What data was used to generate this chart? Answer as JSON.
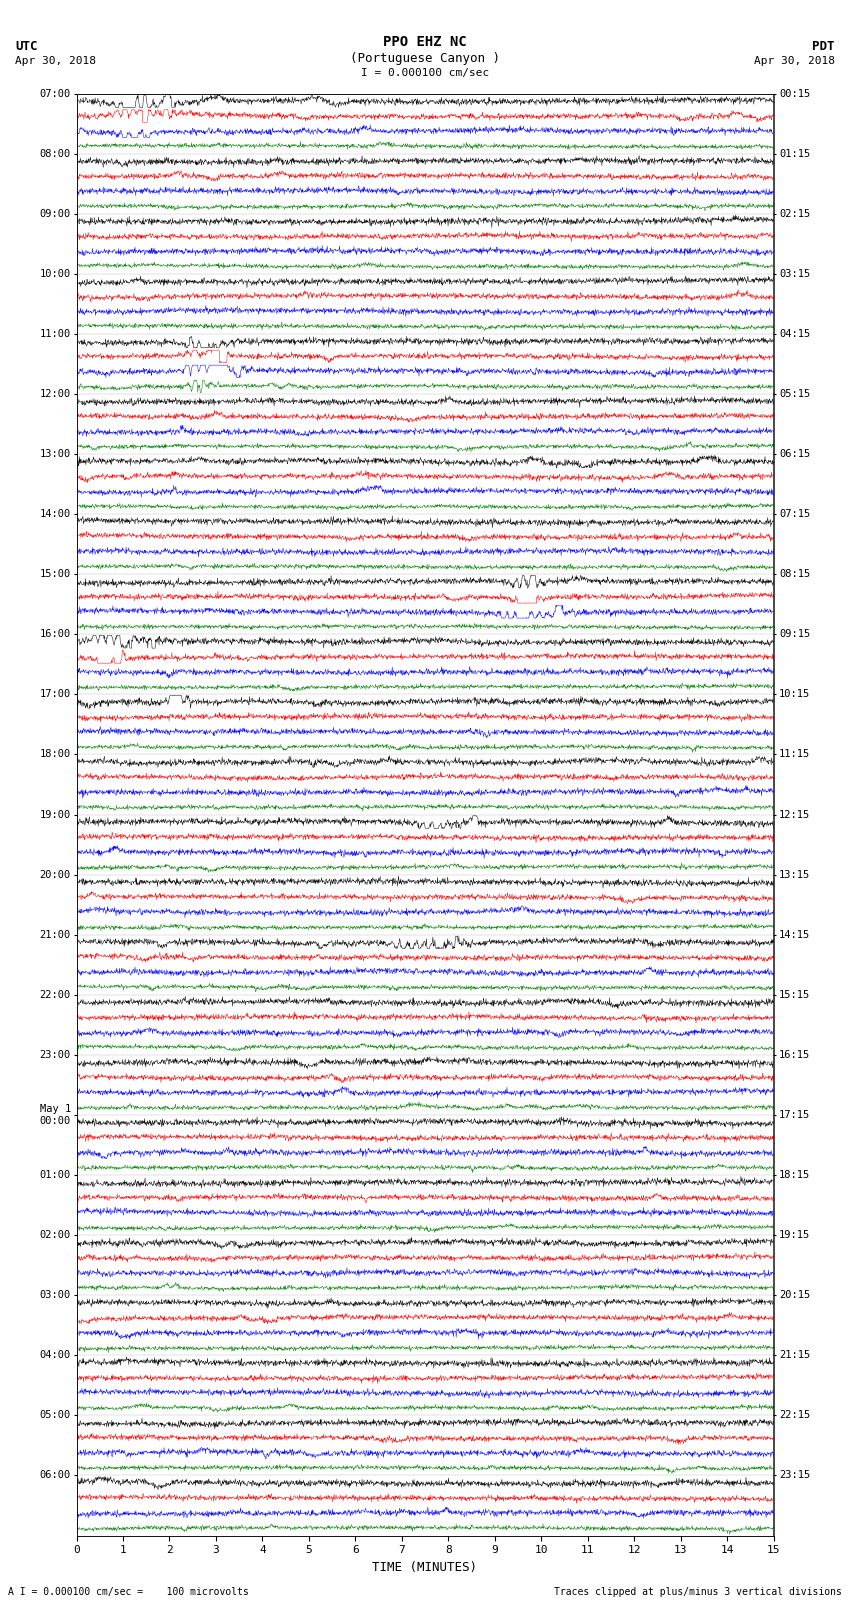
{
  "title_line1": "PPO EHZ NC",
  "title_line2": "(Portuguese Canyon )",
  "scale_bar": "I = 0.000100 cm/sec",
  "footer_left": "A I = 0.000100 cm/sec =    100 microvolts",
  "footer_right": "Traces clipped at plus/minus 3 vertical divisions",
  "xlabel": "TIME (MINUTES)",
  "time_min": 0,
  "time_max": 15,
  "n_hours": 24,
  "traces_per_hour": 4,
  "colors_cycle": [
    "black",
    "red",
    "blue",
    "green"
  ],
  "utc_labels": [
    "07:00",
    "08:00",
    "09:00",
    "10:00",
    "11:00",
    "12:00",
    "13:00",
    "14:00",
    "15:00",
    "16:00",
    "17:00",
    "18:00",
    "19:00",
    "20:00",
    "21:00",
    "22:00",
    "23:00",
    "May 1\n00:00",
    "01:00",
    "02:00",
    "03:00",
    "04:00",
    "05:00",
    "06:00"
  ],
  "pdt_labels": [
    "00:15",
    "01:15",
    "02:15",
    "03:15",
    "04:15",
    "05:15",
    "06:15",
    "07:15",
    "08:15",
    "09:15",
    "10:15",
    "11:15",
    "12:15",
    "13:15",
    "14:15",
    "15:15",
    "16:15",
    "17:15",
    "18:15",
    "19:15",
    "20:15",
    "21:15",
    "22:15",
    "23:15"
  ],
  "background_color": "white",
  "trace_amplitude": 0.42,
  "noise_base": 0.12,
  "xticks": [
    0,
    1,
    2,
    3,
    4,
    5,
    6,
    7,
    8,
    9,
    10,
    11,
    12,
    13,
    14,
    15
  ]
}
